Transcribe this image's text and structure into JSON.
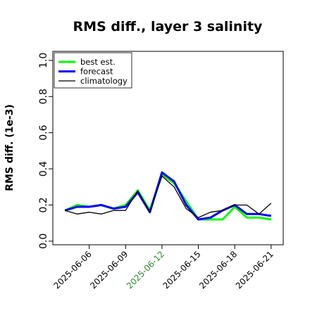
{
  "chart_data": {
    "type": "line",
    "title": "RMS diff., layer 3 salinity",
    "xlabel": "",
    "ylabel": "RMS diff. (1e-3)",
    "ylim": [
      -0.02,
      1.05
    ],
    "xlim": [
      "2025-06-03",
      "2025-06-22"
    ],
    "yticks": [
      "0.0",
      "0.2",
      "0.4",
      "0.6",
      "0.8",
      "1.0"
    ],
    "yticks_values": [
      0.0,
      0.2,
      0.4,
      0.6,
      0.8,
      1.0
    ],
    "xticks": [
      "2025-06-06",
      "2025-06-09",
      "2025-06-12",
      "2025-06-15",
      "2025-06-18",
      "2025-06-21"
    ],
    "highlight_tick": "2025-06-12",
    "highlight_color": "#2e8b2e",
    "grid": false,
    "legend_position": "top-left",
    "x": [
      "2025-06-04",
      "2025-06-05",
      "2025-06-06",
      "2025-06-07",
      "2025-06-08",
      "2025-06-09",
      "2025-06-10",
      "2025-06-11",
      "2025-06-12",
      "2025-06-13",
      "2025-06-14",
      "2025-06-15",
      "2025-06-16",
      "2025-06-17",
      "2025-06-18",
      "2025-06-19",
      "2025-06-20",
      "2025-06-21"
    ],
    "series": [
      {
        "name": "best est.",
        "color": "#00ff00",
        "width": 3,
        "values": [
          0.17,
          0.2,
          0.19,
          0.2,
          0.18,
          0.2,
          0.28,
          0.17,
          0.37,
          0.32,
          0.22,
          0.12,
          0.12,
          0.12,
          0.19,
          0.13,
          0.13,
          0.12
        ]
      },
      {
        "name": "forecast",
        "color": "#0000ff",
        "width": 3,
        "values": [
          0.17,
          0.19,
          0.19,
          0.2,
          0.18,
          0.19,
          0.27,
          0.16,
          0.38,
          0.33,
          0.2,
          0.12,
          0.13,
          0.17,
          0.2,
          0.15,
          0.15,
          0.14
        ]
      },
      {
        "name": "climatology",
        "color": "#000000",
        "width": 1.3,
        "values": [
          0.17,
          0.15,
          0.16,
          0.15,
          0.17,
          0.17,
          0.28,
          0.16,
          0.36,
          0.3,
          0.18,
          0.13,
          0.16,
          0.17,
          0.2,
          0.2,
          0.15,
          0.21
        ]
      }
    ]
  }
}
